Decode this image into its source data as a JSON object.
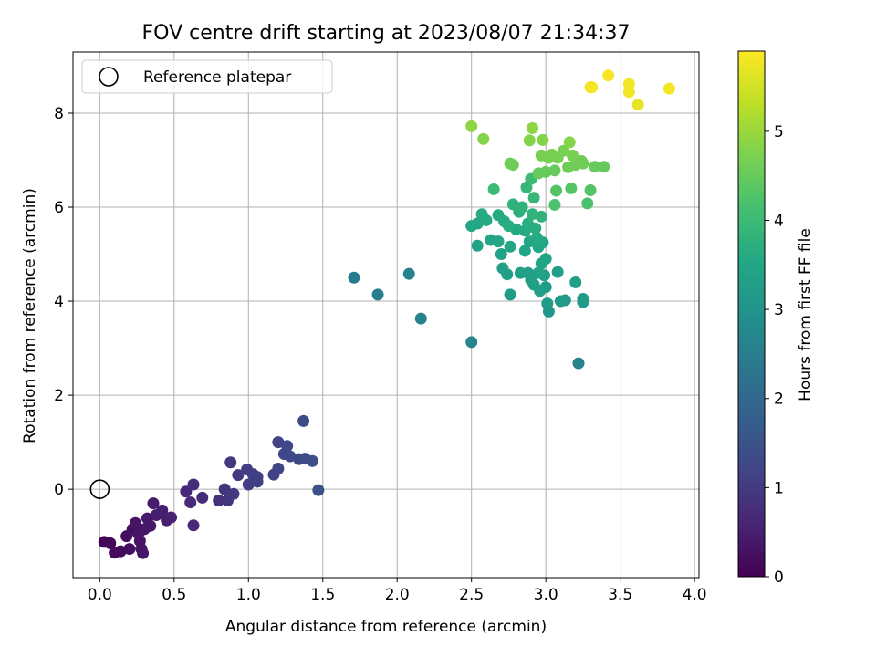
{
  "chart_data": {
    "type": "scatter",
    "title": "FOV centre drift starting at 2023/08/07 21:34:37",
    "xlabel": "Angular distance from reference (arcmin)",
    "ylabel": "Rotation from reference (arcmin)",
    "xlim": [
      -0.18,
      4.03
    ],
    "ylim": [
      -1.88,
      9.3
    ],
    "xticks": [
      "0.0",
      "0.5",
      "1.0",
      "1.5",
      "2.0",
      "2.5",
      "3.0",
      "3.5",
      "4.0"
    ],
    "yticks": [
      "0",
      "2",
      "4",
      "6",
      "8"
    ],
    "grid": true,
    "legend": {
      "position": "top-left",
      "entries": [
        "Reference platepar"
      ]
    },
    "reference_point": {
      "x": 0,
      "y": 0
    },
    "colorbar": {
      "label": "Hours from first FF file",
      "range": [
        0,
        5.9
      ],
      "ticks": [
        "0",
        "1",
        "2",
        "3",
        "4",
        "5"
      ],
      "colormap": "viridis"
    },
    "points": [
      {
        "x": 0.03,
        "y": -1.12,
        "h": 0.05
      },
      {
        "x": 0.07,
        "y": -1.15,
        "h": 0.1
      },
      {
        "x": 0.1,
        "y": -1.35,
        "h": 0.15
      },
      {
        "x": 0.14,
        "y": -1.32,
        "h": 0.15
      },
      {
        "x": 0.18,
        "y": -1.0,
        "h": 0.2
      },
      {
        "x": 0.2,
        "y": -1.27,
        "h": 0.2
      },
      {
        "x": 0.22,
        "y": -0.85,
        "h": 0.25
      },
      {
        "x": 0.24,
        "y": -0.72,
        "h": 0.3
      },
      {
        "x": 0.26,
        "y": -0.95,
        "h": 0.3
      },
      {
        "x": 0.27,
        "y": -1.1,
        "h": 0.3
      },
      {
        "x": 0.28,
        "y": -1.27,
        "h": 0.3
      },
      {
        "x": 0.29,
        "y": -1.36,
        "h": 0.35
      },
      {
        "x": 0.3,
        "y": -0.85,
        "h": 0.35
      },
      {
        "x": 0.32,
        "y": -0.62,
        "h": 0.4
      },
      {
        "x": 0.34,
        "y": -0.78,
        "h": 0.4
      },
      {
        "x": 0.36,
        "y": -0.3,
        "h": 0.45
      },
      {
        "x": 0.38,
        "y": -0.55,
        "h": 0.45
      },
      {
        "x": 0.42,
        "y": -0.45,
        "h": 0.5
      },
      {
        "x": 0.45,
        "y": -0.66,
        "h": 0.5
      },
      {
        "x": 0.48,
        "y": -0.6,
        "h": 0.55
      },
      {
        "x": 0.58,
        "y": -0.05,
        "h": 0.65
      },
      {
        "x": 0.61,
        "y": -0.28,
        "h": 0.7
      },
      {
        "x": 0.63,
        "y": 0.1,
        "h": 0.75
      },
      {
        "x": 0.63,
        "y": -0.77,
        "h": 0.7
      },
      {
        "x": 0.69,
        "y": -0.18,
        "h": 0.75
      },
      {
        "x": 0.8,
        "y": -0.24,
        "h": 0.85
      },
      {
        "x": 0.84,
        "y": 0.0,
        "h": 0.9
      },
      {
        "x": 0.86,
        "y": -0.24,
        "h": 0.9
      },
      {
        "x": 0.88,
        "y": 0.57,
        "h": 0.95
      },
      {
        "x": 0.9,
        "y": -0.1,
        "h": 0.95
      },
      {
        "x": 0.93,
        "y": 0.3,
        "h": 1.0
      },
      {
        "x": 0.99,
        "y": 0.42,
        "h": 1.05
      },
      {
        "x": 1.0,
        "y": 0.1,
        "h": 1.05
      },
      {
        "x": 1.03,
        "y": 0.32,
        "h": 1.1
      },
      {
        "x": 1.06,
        "y": 0.26,
        "h": 1.1
      },
      {
        "x": 1.06,
        "y": 0.16,
        "h": 1.1
      },
      {
        "x": 1.17,
        "y": 0.31,
        "h": 1.15
      },
      {
        "x": 1.2,
        "y": 1.0,
        "h": 1.2
      },
      {
        "x": 1.2,
        "y": 0.44,
        "h": 1.2
      },
      {
        "x": 1.24,
        "y": 0.75,
        "h": 1.25
      },
      {
        "x": 1.26,
        "y": 0.92,
        "h": 1.25
      },
      {
        "x": 1.28,
        "y": 0.7,
        "h": 1.3
      },
      {
        "x": 1.34,
        "y": 0.64,
        "h": 1.3
      },
      {
        "x": 1.37,
        "y": 1.45,
        "h": 1.35
      },
      {
        "x": 1.38,
        "y": 0.65,
        "h": 1.35
      },
      {
        "x": 1.43,
        "y": 0.6,
        "h": 1.4
      },
      {
        "x": 1.47,
        "y": -0.02,
        "h": 1.5
      },
      {
        "x": 1.71,
        "y": 4.5,
        "h": 2.4
      },
      {
        "x": 1.87,
        "y": 4.14,
        "h": 2.5
      },
      {
        "x": 2.08,
        "y": 4.58,
        "h": 2.6
      },
      {
        "x": 2.16,
        "y": 3.63,
        "h": 2.6
      },
      {
        "x": 2.5,
        "y": 3.13,
        "h": 2.7
      },
      {
        "x": 3.22,
        "y": 2.68,
        "h": 2.6
      },
      {
        "x": 2.5,
        "y": 5.6,
        "h": 3.5
      },
      {
        "x": 2.54,
        "y": 5.65,
        "h": 3.5
      },
      {
        "x": 2.54,
        "y": 5.18,
        "h": 3.4
      },
      {
        "x": 2.57,
        "y": 5.85,
        "h": 3.6
      },
      {
        "x": 2.6,
        "y": 5.72,
        "h": 3.6
      },
      {
        "x": 2.63,
        "y": 5.3,
        "h": 3.5
      },
      {
        "x": 2.65,
        "y": 6.38,
        "h": 4.0
      },
      {
        "x": 2.68,
        "y": 5.83,
        "h": 3.6
      },
      {
        "x": 2.68,
        "y": 5.27,
        "h": 3.5
      },
      {
        "x": 2.7,
        "y": 5.0,
        "h": 3.4
      },
      {
        "x": 2.71,
        "y": 4.7,
        "h": 3.3
      },
      {
        "x": 2.72,
        "y": 5.7,
        "h": 3.6
      },
      {
        "x": 2.74,
        "y": 4.57,
        "h": 3.3
      },
      {
        "x": 2.75,
        "y": 5.6,
        "h": 3.7
      },
      {
        "x": 2.76,
        "y": 5.16,
        "h": 3.5
      },
      {
        "x": 2.76,
        "y": 4.14,
        "h": 3.2
      },
      {
        "x": 2.78,
        "y": 6.06,
        "h": 3.8
      },
      {
        "x": 2.8,
        "y": 5.53,
        "h": 3.6
      },
      {
        "x": 2.82,
        "y": 5.9,
        "h": 3.7
      },
      {
        "x": 2.83,
        "y": 4.6,
        "h": 3.3
      },
      {
        "x": 2.84,
        "y": 6.0,
        "h": 3.8
      },
      {
        "x": 2.86,
        "y": 5.5,
        "h": 3.6
      },
      {
        "x": 2.86,
        "y": 5.07,
        "h": 3.5
      },
      {
        "x": 2.87,
        "y": 6.42,
        "h": 3.9
      },
      {
        "x": 2.88,
        "y": 4.6,
        "h": 3.3
      },
      {
        "x": 2.88,
        "y": 5.65,
        "h": 3.7
      },
      {
        "x": 2.89,
        "y": 5.27,
        "h": 3.5
      },
      {
        "x": 2.9,
        "y": 4.45,
        "h": 3.3
      },
      {
        "x": 2.9,
        "y": 6.6,
        "h": 4.0
      },
      {
        "x": 2.91,
        "y": 5.85,
        "h": 3.8
      },
      {
        "x": 2.92,
        "y": 6.2,
        "h": 3.9
      },
      {
        "x": 2.92,
        "y": 4.35,
        "h": 3.3
      },
      {
        "x": 2.93,
        "y": 5.55,
        "h": 3.7
      },
      {
        "x": 2.94,
        "y": 5.35,
        "h": 3.6
      },
      {
        "x": 2.95,
        "y": 4.6,
        "h": 3.4
      },
      {
        "x": 2.95,
        "y": 5.15,
        "h": 3.5
      },
      {
        "x": 2.96,
        "y": 4.22,
        "h": 3.3
      },
      {
        "x": 2.97,
        "y": 5.8,
        "h": 3.8
      },
      {
        "x": 2.97,
        "y": 4.8,
        "h": 3.4
      },
      {
        "x": 2.98,
        "y": 5.25,
        "h": 3.5
      },
      {
        "x": 2.99,
        "y": 4.55,
        "h": 3.3
      },
      {
        "x": 3.0,
        "y": 4.9,
        "h": 3.4
      },
      {
        "x": 3.0,
        "y": 4.3,
        "h": 3.2
      },
      {
        "x": 3.01,
        "y": 3.95,
        "h": 3.2
      },
      {
        "x": 3.02,
        "y": 3.78,
        "h": 3.1
      },
      {
        "x": 3.08,
        "y": 4.62,
        "h": 3.3
      },
      {
        "x": 3.1,
        "y": 4.0,
        "h": 3.2
      },
      {
        "x": 3.13,
        "y": 4.02,
        "h": 3.2
      },
      {
        "x": 3.2,
        "y": 4.4,
        "h": 3.3
      },
      {
        "x": 3.25,
        "y": 3.98,
        "h": 3.2
      },
      {
        "x": 3.25,
        "y": 4.05,
        "h": 3.2
      },
      {
        "x": 3.06,
        "y": 6.05,
        "h": 4.2
      },
      {
        "x": 3.07,
        "y": 6.35,
        "h": 4.3
      },
      {
        "x": 3.17,
        "y": 6.4,
        "h": 4.3
      },
      {
        "x": 3.28,
        "y": 6.08,
        "h": 4.2
      },
      {
        "x": 3.3,
        "y": 6.36,
        "h": 4.3
      },
      {
        "x": 2.5,
        "y": 7.72,
        "h": 4.9
      },
      {
        "x": 2.58,
        "y": 7.45,
        "h": 4.8
      },
      {
        "x": 2.76,
        "y": 6.93,
        "h": 4.6
      },
      {
        "x": 2.78,
        "y": 6.9,
        "h": 4.6
      },
      {
        "x": 2.89,
        "y": 7.42,
        "h": 4.8
      },
      {
        "x": 2.91,
        "y": 7.68,
        "h": 4.9
      },
      {
        "x": 2.95,
        "y": 6.72,
        "h": 4.5
      },
      {
        "x": 2.97,
        "y": 7.1,
        "h": 4.7
      },
      {
        "x": 2.98,
        "y": 7.43,
        "h": 4.8
      },
      {
        "x": 3.0,
        "y": 6.75,
        "h": 4.5
      },
      {
        "x": 3.02,
        "y": 7.05,
        "h": 4.7
      },
      {
        "x": 3.04,
        "y": 7.12,
        "h": 4.7
      },
      {
        "x": 3.06,
        "y": 6.78,
        "h": 4.5
      },
      {
        "x": 3.08,
        "y": 7.05,
        "h": 4.7
      },
      {
        "x": 3.12,
        "y": 7.2,
        "h": 4.7
      },
      {
        "x": 3.15,
        "y": 6.85,
        "h": 4.6
      },
      {
        "x": 3.16,
        "y": 7.38,
        "h": 4.8
      },
      {
        "x": 3.18,
        "y": 7.1,
        "h": 4.7
      },
      {
        "x": 3.2,
        "y": 6.9,
        "h": 4.6
      },
      {
        "x": 3.24,
        "y": 6.98,
        "h": 4.6
      },
      {
        "x": 3.25,
        "y": 6.93,
        "h": 4.6
      },
      {
        "x": 3.33,
        "y": 6.86,
        "h": 4.5
      },
      {
        "x": 3.39,
        "y": 6.86,
        "h": 4.5
      },
      {
        "x": 3.3,
        "y": 8.55,
        "h": 5.8
      },
      {
        "x": 3.31,
        "y": 8.55,
        "h": 5.8
      },
      {
        "x": 3.42,
        "y": 8.8,
        "h": 5.85
      },
      {
        "x": 3.56,
        "y": 8.62,
        "h": 5.8
      },
      {
        "x": 3.56,
        "y": 8.45,
        "h": 5.8
      },
      {
        "x": 3.62,
        "y": 8.18,
        "h": 5.7
      },
      {
        "x": 3.83,
        "y": 8.52,
        "h": 5.8
      }
    ]
  }
}
